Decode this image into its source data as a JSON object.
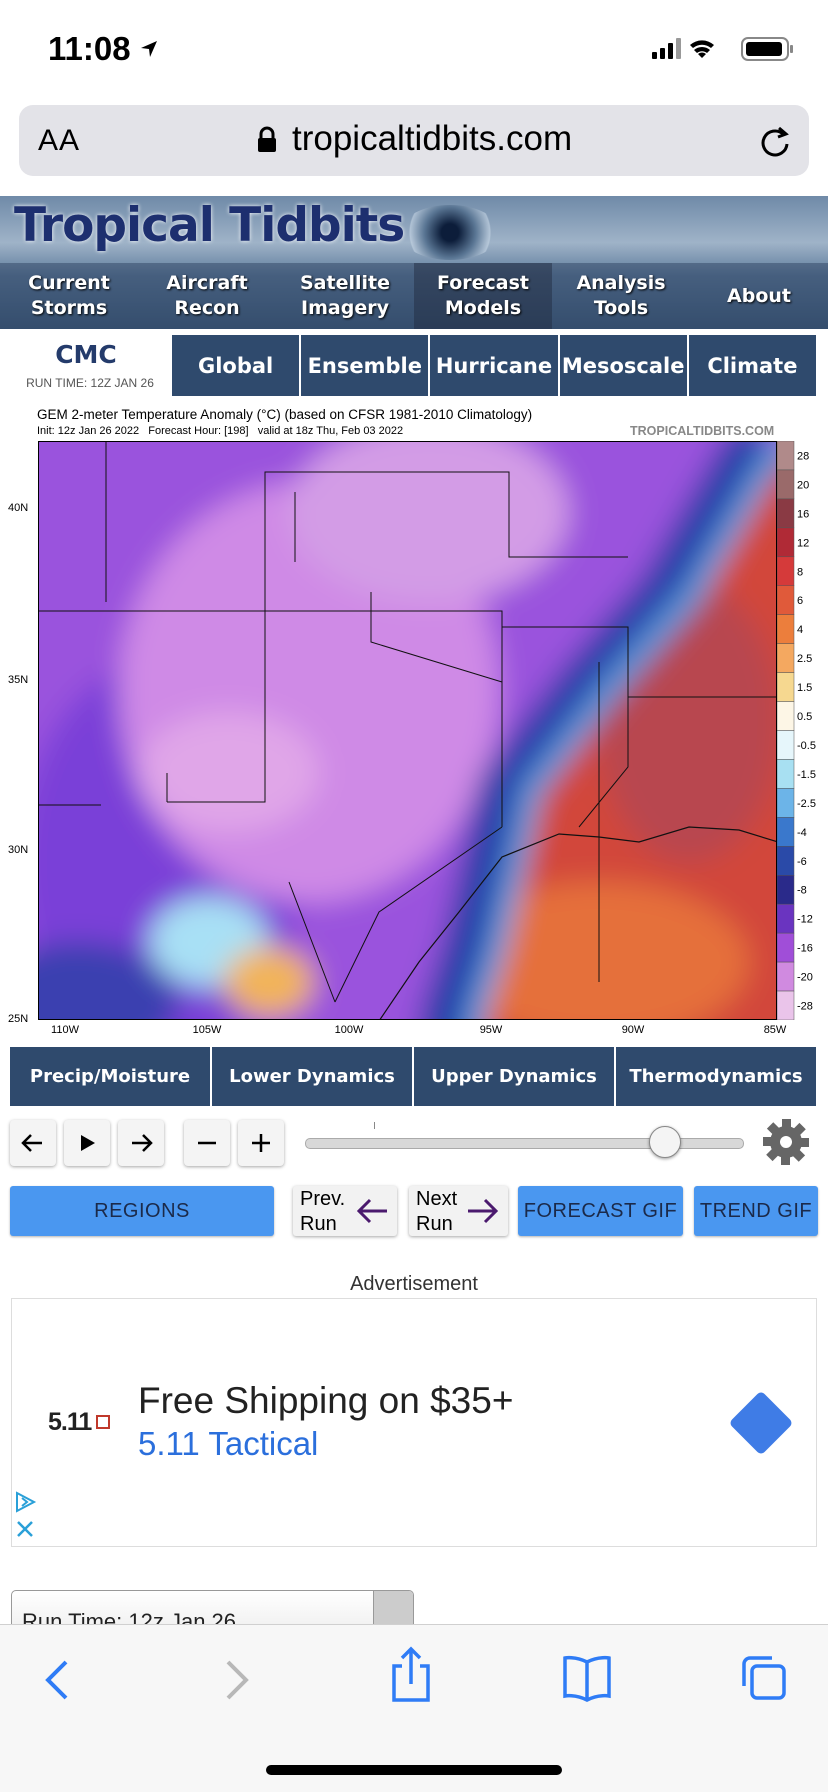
{
  "status_bar": {
    "time": "11:08"
  },
  "browser": {
    "text_size_button": "AA",
    "url": "tropicaltidbits.com"
  },
  "site": {
    "logo": "Tropical Tidbits",
    "nav": [
      "Current Storms",
      "Aircraft Recon",
      "Satellite Imagery",
      "Forecast Models",
      "Analysis Tools",
      "About"
    ]
  },
  "model": {
    "name": "CMC",
    "run_time": "RUN TIME: 12Z JAN 26",
    "tabs": [
      "Global",
      "Ensemble",
      "Hurricane",
      "Mesoscale",
      "Climate"
    ]
  },
  "chart": {
    "title": "GEM 2-meter Temperature Anomaly (°C) (based on CFSR 1981-2010 Climatology)",
    "subtitle": "Init: 12z Jan 26 2022   Forecast Hour: [198]   valid at 18z Thu, Feb 03 2022",
    "watermark": "TROPICALTIDBITS.COM",
    "lat_labels": [
      "40N",
      "35N",
      "30N",
      "25N"
    ],
    "lon_labels": [
      "110W",
      "105W",
      "100W",
      "95W",
      "90W",
      "85W"
    ],
    "colorbar_labels": [
      "28",
      "20",
      "16",
      "12",
      "8",
      "6",
      "4",
      "2.5",
      "1.5",
      "0.5",
      "-0.5",
      "-1.5",
      "-2.5",
      "-4",
      "-6",
      "-8",
      "-12",
      "-16",
      "-20",
      "-28"
    ]
  },
  "categories": [
    "Precip/Moisture",
    "Lower Dynamics",
    "Upper Dynamics",
    "Thermodynamics"
  ],
  "controls": {
    "regions": "REGIONS",
    "prev_run": "Prev. Run",
    "next_run": "Next Run",
    "forecast_gif": "FORECAST GIF",
    "trend_gif": "TREND GIF"
  },
  "ad": {
    "label": "Advertisement",
    "brand_logo": "5.11",
    "headline": "Free Shipping on $35+",
    "advertiser": "5.11 Tactical"
  },
  "run_time_select": "Run Time: 12z Jan 26"
}
